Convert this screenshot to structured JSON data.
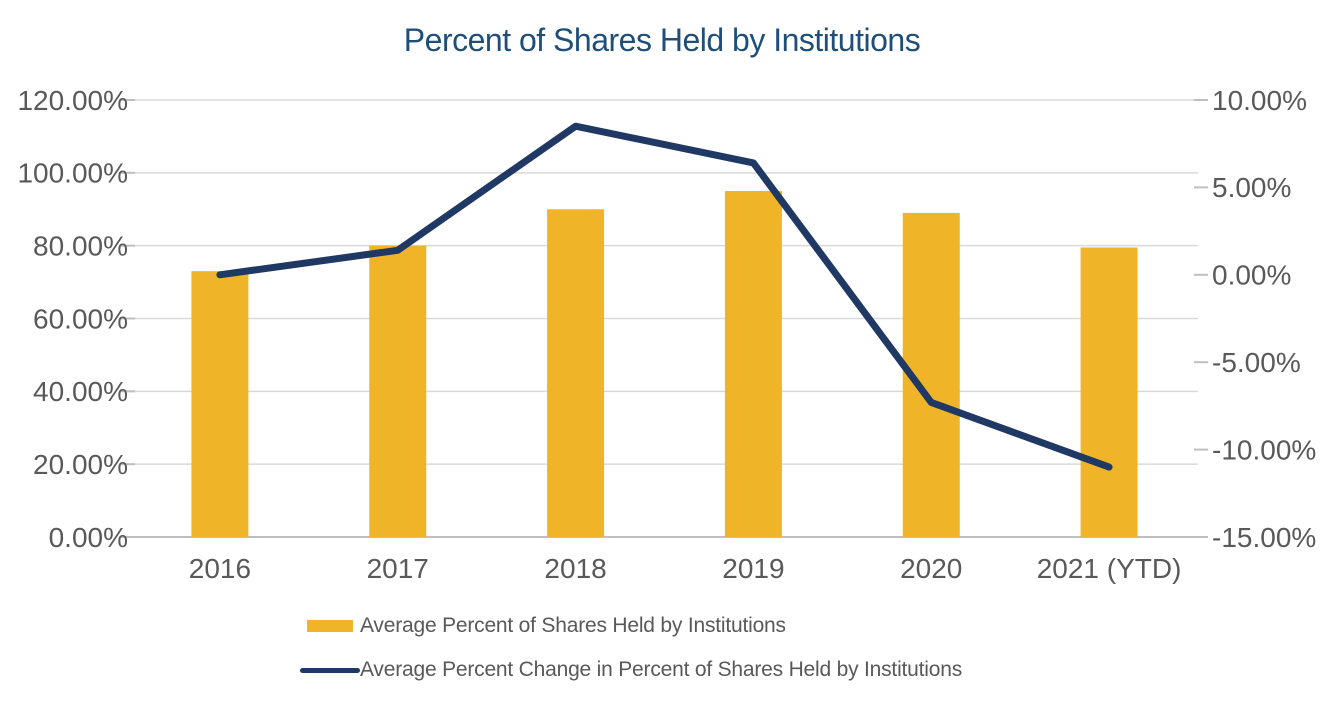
{
  "title": "Percent of Shares Held by Institutions",
  "colors": {
    "title_text": "#1F4E79",
    "bar_fill": "#F0B429",
    "line_stroke": "#1F3864",
    "gridline": "#D9D9D9",
    "axis_line": "#BFBFBF",
    "tick_mark": "#BFBFBF",
    "axis_text": "#595959"
  },
  "legend": {
    "items": [
      {
        "key": "bar-series",
        "label": "Average Percent of Shares Held by Institutions"
      },
      {
        "key": "line-series",
        "label": "Average Percent Change in Percent of Shares Held by Institutions"
      }
    ]
  },
  "chart_data": {
    "type": "bar+line combo",
    "title": "Percent of Shares Held by Institutions",
    "categories": [
      "2016",
      "2017",
      "2018",
      "2019",
      "2020",
      "2021 (YTD)"
    ],
    "series": [
      {
        "name": "Average Percent of Shares Held by Institutions",
        "type": "bar",
        "axis": "left",
        "values": [
          73,
          80,
          90,
          95,
          89,
          79.5
        ]
      },
      {
        "name": "Average Percent Change in Percent of Shares Held by Institutions",
        "type": "line",
        "axis": "right",
        "values": [
          0.0,
          1.4,
          8.5,
          6.4,
          -7.3,
          -11.0
        ]
      }
    ],
    "left_axis": {
      "min": 0,
      "max": 120,
      "step": 20,
      "ticks": [
        {
          "v": 120,
          "label": "120.00%"
        },
        {
          "v": 100,
          "label": "100.00%"
        },
        {
          "v": 80,
          "label": "80.00%"
        },
        {
          "v": 60,
          "label": "60.00%"
        },
        {
          "v": 40,
          "label": "40.00%"
        },
        {
          "v": 20,
          "label": "20.00%"
        },
        {
          "v": 0,
          "label": "0.00%"
        }
      ]
    },
    "right_axis": {
      "min": -15,
      "max": 10,
      "step": 5,
      "ticks": [
        {
          "v": 10,
          "label": "10.00%"
        },
        {
          "v": 5,
          "label": "5.00%"
        },
        {
          "v": 0,
          "label": "0.00%"
        },
        {
          "v": -5,
          "label": "-5.00%"
        },
        {
          "v": -10,
          "label": "-10.00%"
        },
        {
          "v": -15,
          "label": "-15.00%"
        }
      ]
    },
    "grid": "horizontal gridlines on (left axis), bottom axis line only, no vertical gridlines",
    "legend_position": "below plot, left-aligned, stacked vertically"
  }
}
